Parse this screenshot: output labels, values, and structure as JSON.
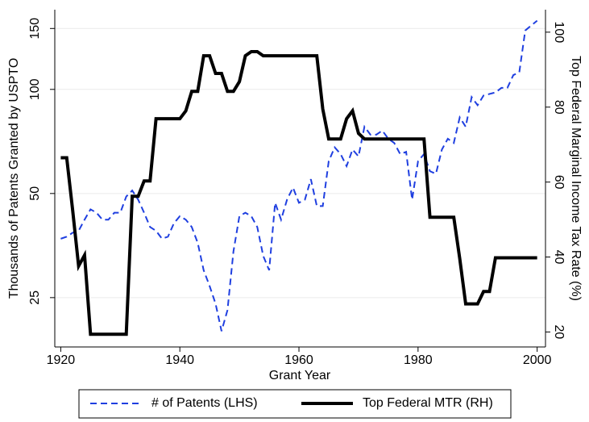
{
  "chart_data": {
    "type": "line",
    "x_label": "Grant Year",
    "y_label": "Thousands of Patents Granted by USPTO",
    "y2_label": "Top Federal Marginal Income Tax Rate (%)",
    "x": [
      1920,
      1921,
      1922,
      1923,
      1924,
      1925,
      1926,
      1927,
      1928,
      1929,
      1930,
      1931,
      1932,
      1933,
      1934,
      1935,
      1936,
      1937,
      1938,
      1939,
      1940,
      1941,
      1942,
      1943,
      1944,
      1945,
      1946,
      1947,
      1948,
      1949,
      1950,
      1951,
      1952,
      1953,
      1954,
      1955,
      1956,
      1957,
      1958,
      1959,
      1960,
      1961,
      1962,
      1963,
      1964,
      1965,
      1966,
      1967,
      1968,
      1969,
      1970,
      1971,
      1972,
      1973,
      1974,
      1975,
      1976,
      1977,
      1978,
      1979,
      1980,
      1981,
      1982,
      1983,
      1984,
      1985,
      1986,
      1987,
      1988,
      1989,
      1990,
      1991,
      1992,
      1993,
      1994,
      1995,
      1996,
      1997,
      1998,
      1999,
      2000
    ],
    "series": [
      {
        "name": "# of Patents (LHS)",
        "color": "#1f3fe0",
        "line_style": "dashed",
        "axis": "y",
        "values": [
          37,
          37.5,
          38.5,
          39,
          42,
          45,
          44,
          42,
          42,
          44,
          44,
          49,
          51,
          48,
          44,
          40,
          39,
          37,
          37.5,
          41,
          43,
          42,
          40,
          36,
          30,
          27,
          24,
          20,
          23,
          34,
          43,
          44,
          43,
          40,
          33,
          30,
          47,
          42,
          48,
          52,
          47,
          48,
          55,
          46,
          46,
          62,
          68,
          65,
          60,
          67,
          64,
          78,
          74,
          74,
          76,
          72,
          70,
          65,
          66,
          48,
          62,
          65,
          58,
          57,
          67,
          72,
          70,
          83,
          78,
          95,
          90,
          96,
          97,
          98,
          101,
          101,
          110,
          112,
          148,
          153,
          158
        ]
      },
      {
        "name": "Top Federal MTR (RH)",
        "color": "#000000",
        "line_style": "solid",
        "axis": "y2",
        "values": [
          66.5,
          66.5,
          52.5,
          37.6,
          40.5,
          19.4,
          19.4,
          19.4,
          19.4,
          19.4,
          19.4,
          19.4,
          56.2,
          56.2,
          60.3,
          60.3,
          76.9,
          76.9,
          76.9,
          76.9,
          76.9,
          79,
          84.2,
          84.2,
          93.7,
          93.7,
          89,
          89,
          84.2,
          84.2,
          86.8,
          93.7,
          94.8,
          94.8,
          93.7,
          93.7,
          93.7,
          93.7,
          93.7,
          93.7,
          93.7,
          93.7,
          93.7,
          93.7,
          79.5,
          71.5,
          71.5,
          71.5,
          76.9,
          79,
          73,
          71.5,
          71.5,
          71.5,
          71.5,
          71.5,
          71.5,
          71.5,
          71.5,
          71.5,
          71.5,
          71.5,
          50.6,
          50.6,
          50.6,
          50.6,
          50.6,
          39.6,
          27.5,
          27.5,
          27.5,
          30.8,
          30.8,
          39.8,
          39.8,
          39.8,
          39.8,
          39.8,
          39.8,
          39.8,
          39.8
        ]
      }
    ],
    "xlim": [
      1919,
      2001.4
    ],
    "xticks": [
      1920,
      1940,
      1960,
      1980,
      2000
    ],
    "ylim": [
      18,
      170
    ],
    "yticks": [
      25,
      50,
      100,
      150
    ],
    "ylog": true,
    "y2lim": [
      16,
      106
    ],
    "y2ticks": [
      20,
      40,
      60,
      80,
      100
    ],
    "grid": true,
    "legend_position": "bottom"
  }
}
